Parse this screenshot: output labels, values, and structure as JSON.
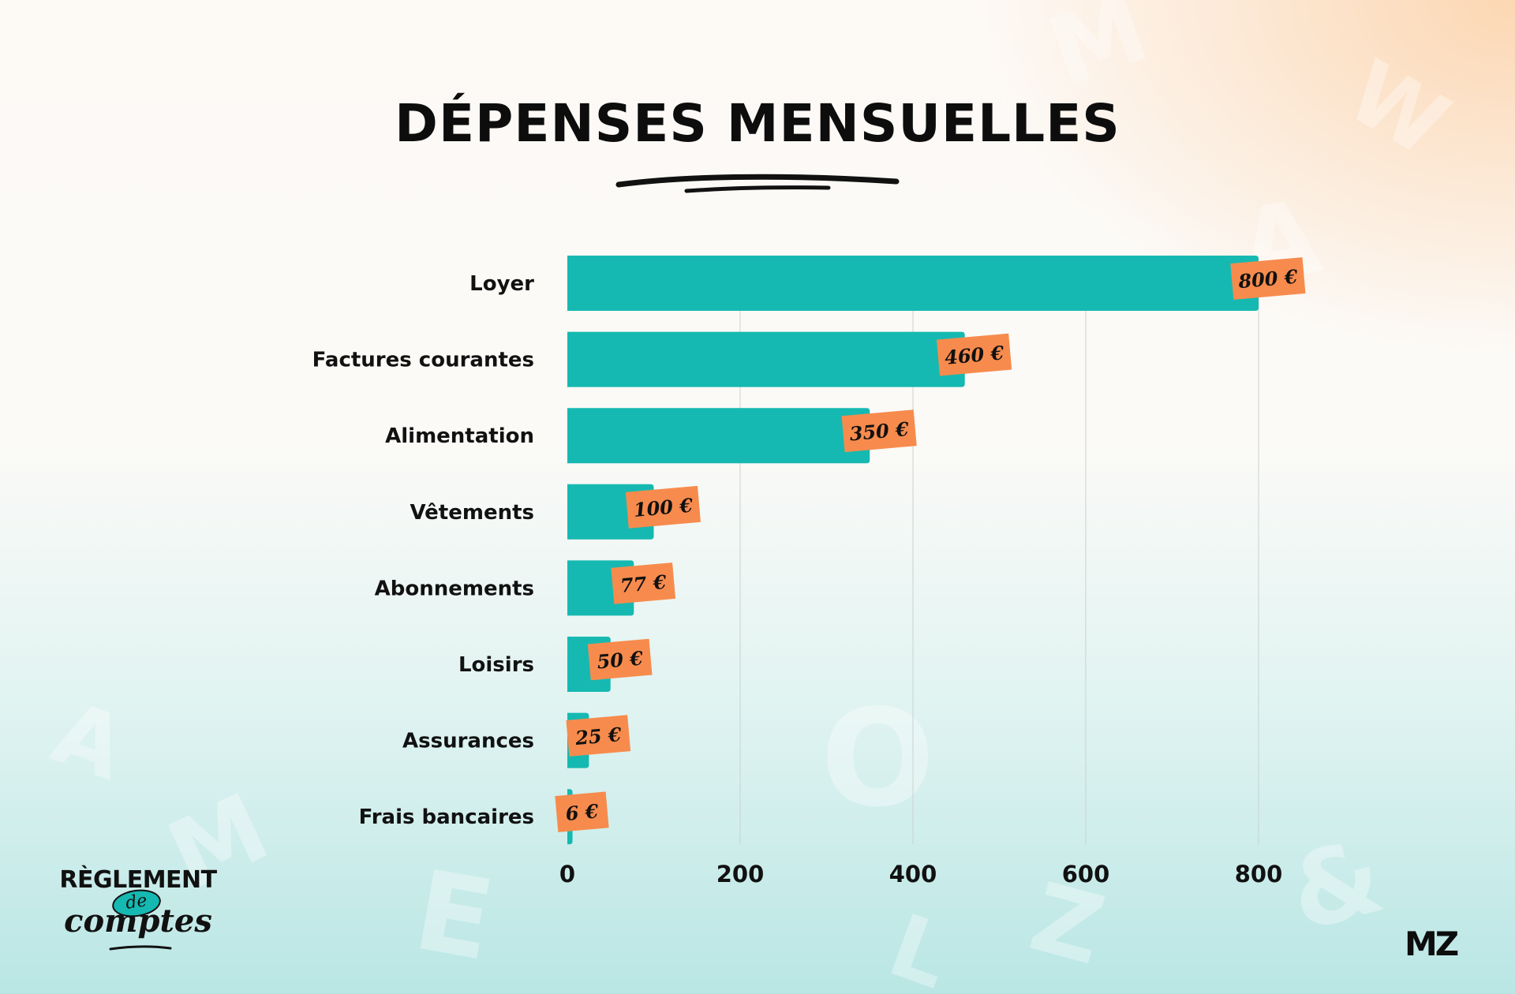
{
  "title": "DÉPENSES MENSUELLES",
  "colors": {
    "bar": "#16b9b1",
    "label_bg": "#f78b4d",
    "text": "#111111",
    "grid": "#c9d2d2"
  },
  "logo": {
    "top": "RÈGLEMENT",
    "middle": "de",
    "bottom": "comptes"
  },
  "brand": "MZ",
  "chart_data": {
    "type": "bar",
    "orientation": "horizontal",
    "categories": [
      "Loyer",
      "Factures courantes",
      "Alimentation",
      "Vêtements",
      "Abonnements",
      "Loisirs",
      "Assurances",
      "Frais bancaires"
    ],
    "values": [
      800,
      460,
      350,
      100,
      77,
      50,
      25,
      6
    ],
    "value_labels": [
      "800 €",
      "460 €",
      "350 €",
      "100 €",
      "77 €",
      "50 €",
      "25 €",
      "6 €"
    ],
    "xticks": [
      0,
      200,
      400,
      600,
      800
    ],
    "xtick_labels": [
      "0",
      "200",
      "400",
      "600",
      "800"
    ],
    "xlim": [
      0,
      800
    ],
    "grid": "vertical",
    "legend": "none"
  }
}
